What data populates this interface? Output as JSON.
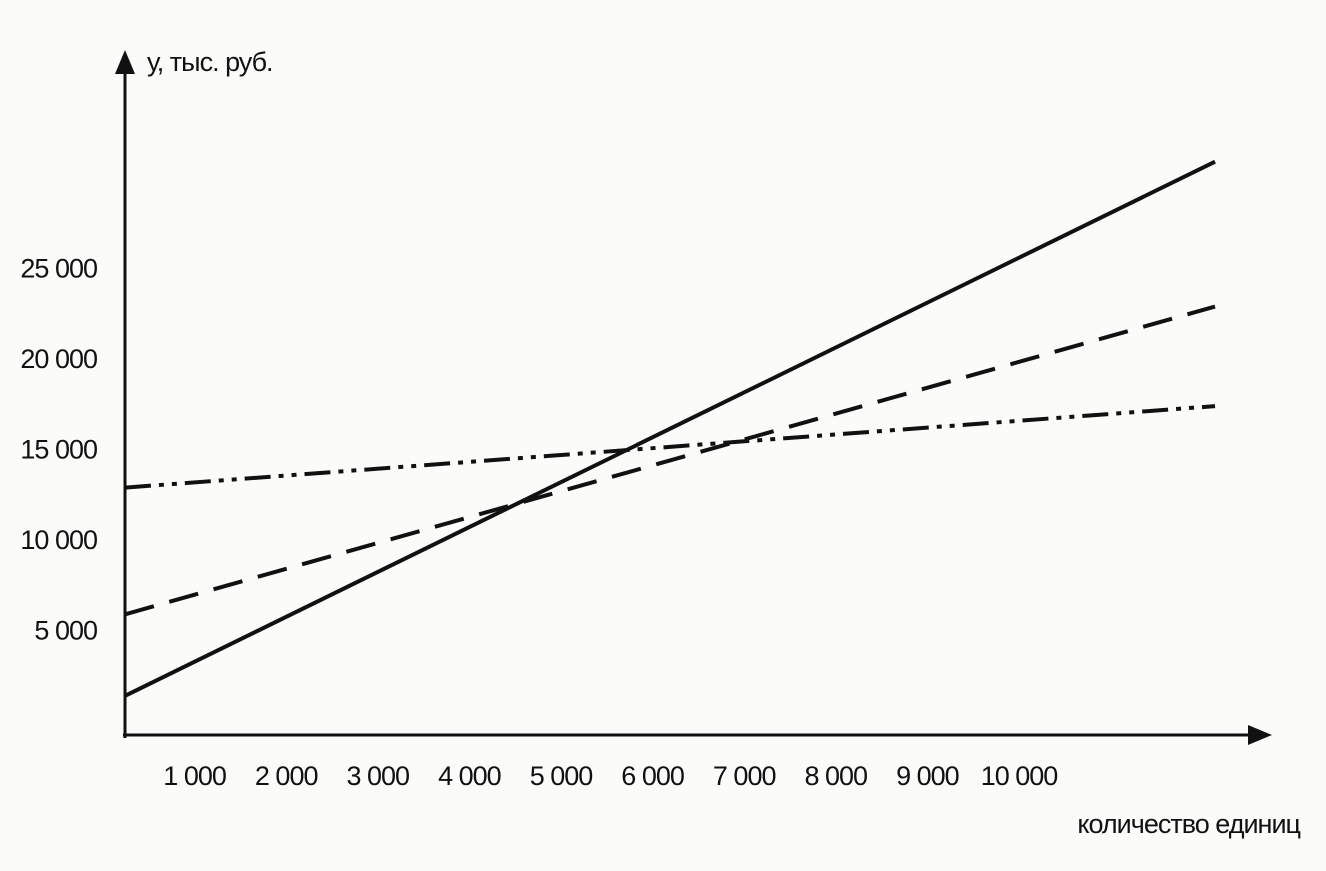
{
  "chart_data": {
    "type": "line",
    "ylabel": "у, тыс. руб.",
    "xlabel": "количество единиц",
    "x": [
      0,
      11900
    ],
    "series": [
      {
        "color": "#111111",
        "dash": "solid",
        "values": [
          1500,
          31000
        ]
      },
      {
        "color": "#111111",
        "dash": "dashed",
        "values": [
          6000,
          23000
        ]
      },
      {
        "color": "#111111",
        "dash": "dash-dot-dot",
        "values": [
          13000,
          17500
        ]
      }
    ],
    "xlim": [
      0,
      12500
    ],
    "ylim": [
      0,
      37000
    ],
    "xticks": [
      {
        "value": 1000,
        "label": "1 000"
      },
      {
        "value": 2000,
        "label": "2 000"
      },
      {
        "value": 3000,
        "label": "3 000"
      },
      {
        "value": 4000,
        "label": "4 000"
      },
      {
        "value": 5000,
        "label": "5 000"
      },
      {
        "value": 6000,
        "label": "6 000"
      },
      {
        "value": 7000,
        "label": "7 000"
      },
      {
        "value": 8000,
        "label": "8 000"
      },
      {
        "value": 9000,
        "label": "9 000"
      },
      {
        "value": 10000,
        "label": "10 000"
      }
    ],
    "yticks": [
      {
        "value": 5000,
        "label": "5 000"
      },
      {
        "value": 10000,
        "label": "10 000"
      },
      {
        "value": 15000,
        "label": "15 000"
      },
      {
        "value": 20000,
        "label": "20 000"
      },
      {
        "value": 25000,
        "label": "25 000"
      }
    ],
    "grid": false
  }
}
